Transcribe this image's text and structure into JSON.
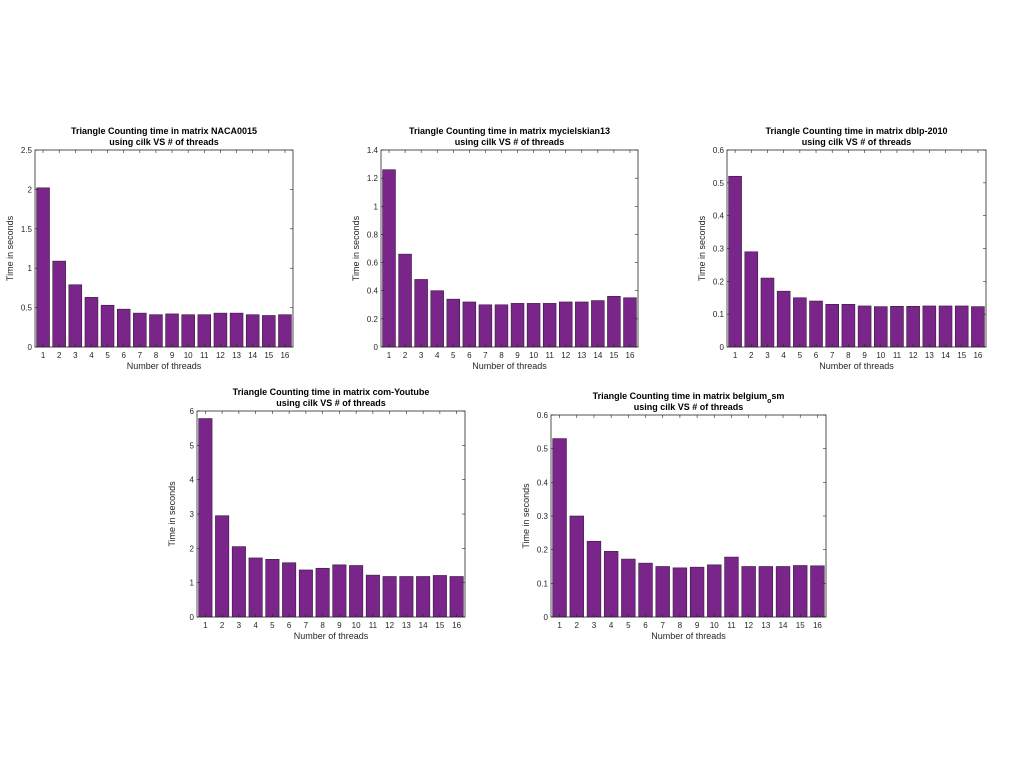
{
  "style": {
    "bar_color": "#7a2589",
    "axis_color": "#262626"
  },
  "chart_data": [
    {
      "type": "bar",
      "title": [
        "Triangle Counting time in matrix NACA0015",
        "using cilk VS # of threads"
      ],
      "xlabel": "Number of threads",
      "ylabel": "Time in seconds",
      "categories": [
        1,
        2,
        3,
        4,
        5,
        6,
        7,
        8,
        9,
        10,
        11,
        12,
        13,
        14,
        15,
        16
      ],
      "values": [
        2.02,
        1.09,
        0.79,
        0.63,
        0.53,
        0.48,
        0.43,
        0.41,
        0.42,
        0.41,
        0.41,
        0.43,
        0.43,
        0.41,
        0.4,
        0.41
      ],
      "ylim": [
        0,
        2.5
      ],
      "yticks": [
        "0",
        "0.5",
        "1",
        "1.5",
        "2",
        "2.5"
      ],
      "xticks": [
        "1",
        "2",
        "3",
        "4",
        "5",
        "6",
        "7",
        "8",
        "9",
        "10",
        "11",
        "12",
        "13",
        "14",
        "15",
        "16"
      ],
      "grid": false
    },
    {
      "type": "bar",
      "title": [
        "Triangle Counting time in matrix mycielskian13",
        "using cilk VS # of threads"
      ],
      "xlabel": "Number of threads",
      "ylabel": "Time in seconds",
      "categories": [
        1,
        2,
        3,
        4,
        5,
        6,
        7,
        8,
        9,
        10,
        11,
        12,
        13,
        14,
        15,
        16
      ],
      "values": [
        1.26,
        0.66,
        0.48,
        0.4,
        0.34,
        0.32,
        0.3,
        0.3,
        0.31,
        0.31,
        0.31,
        0.32,
        0.32,
        0.33,
        0.36,
        0.35
      ],
      "ylim": [
        0,
        1.4
      ],
      "yticks": [
        "0",
        "0.2",
        "0.4",
        "0.6",
        "0.8",
        "1",
        "1.2",
        "1.4"
      ],
      "xticks": [
        "1",
        "2",
        "3",
        "4",
        "5",
        "6",
        "7",
        "8",
        "9",
        "10",
        "11",
        "12",
        "13",
        "14",
        "15",
        "16"
      ],
      "grid": false
    },
    {
      "type": "bar",
      "title": [
        "Triangle Counting time in matrix dblp-2010",
        "using cilk VS # of threads"
      ],
      "xlabel": "Number of threads",
      "ylabel": "Time in seconds",
      "categories": [
        1,
        2,
        3,
        4,
        5,
        6,
        7,
        8,
        9,
        10,
        11,
        12,
        13,
        14,
        15,
        16
      ],
      "values": [
        0.52,
        0.29,
        0.21,
        0.17,
        0.15,
        0.14,
        0.13,
        0.13,
        0.125,
        0.123,
        0.124,
        0.124,
        0.125,
        0.125,
        0.125,
        0.123
      ],
      "ylim": [
        0,
        0.6
      ],
      "yticks": [
        "0",
        "0.1",
        "0.2",
        "0.3",
        "0.4",
        "0.5",
        "0.6"
      ],
      "xticks": [
        "1",
        "2",
        "3",
        "4",
        "5",
        "6",
        "7",
        "8",
        "9",
        "10",
        "11",
        "12",
        "13",
        "14",
        "15",
        "16"
      ],
      "grid": false
    },
    {
      "type": "bar",
      "title": [
        "Triangle Counting time in matrix com-Youtube",
        "using cilk VS # of threads"
      ],
      "xlabel": "Number of threads",
      "ylabel": "Time in seconds",
      "categories": [
        1,
        2,
        3,
        4,
        5,
        6,
        7,
        8,
        9,
        10,
        11,
        12,
        13,
        14,
        15,
        16
      ],
      "values": [
        5.78,
        2.95,
        2.05,
        1.72,
        1.68,
        1.58,
        1.37,
        1.42,
        1.52,
        1.5,
        1.22,
        1.18,
        1.18,
        1.18,
        1.21,
        1.18
      ],
      "ylim": [
        0,
        6
      ],
      "yticks": [
        "0",
        "1",
        "2",
        "3",
        "4",
        "5",
        "6"
      ],
      "xticks": [
        "1",
        "2",
        "3",
        "4",
        "5",
        "6",
        "7",
        "8",
        "9",
        "10",
        "11",
        "12",
        "13",
        "14",
        "15",
        "16"
      ],
      "grid": false
    },
    {
      "type": "bar",
      "title": [
        "Triangle Counting time in matrix belgium",
        "using cilk VS # of threads"
      ],
      "title_subscript": "o",
      "title_suffix": "sm",
      "xlabel": "Number of threads",
      "ylabel": "Time in seconds",
      "categories": [
        1,
        2,
        3,
        4,
        5,
        6,
        7,
        8,
        9,
        10,
        11,
        12,
        13,
        14,
        15,
        16
      ],
      "values": [
        0.53,
        0.3,
        0.225,
        0.195,
        0.172,
        0.16,
        0.15,
        0.146,
        0.148,
        0.155,
        0.178,
        0.15,
        0.15,
        0.15,
        0.153,
        0.152
      ],
      "ylim": [
        0,
        0.6
      ],
      "yticks": [
        "0",
        "0.1",
        "0.2",
        "0.3",
        "0.4",
        "0.5",
        "0.6"
      ],
      "xticks": [
        "1",
        "2",
        "3",
        "4",
        "5",
        "6",
        "7",
        "8",
        "9",
        "10",
        "11",
        "12",
        "13",
        "14",
        "15",
        "16"
      ],
      "grid": false
    }
  ]
}
